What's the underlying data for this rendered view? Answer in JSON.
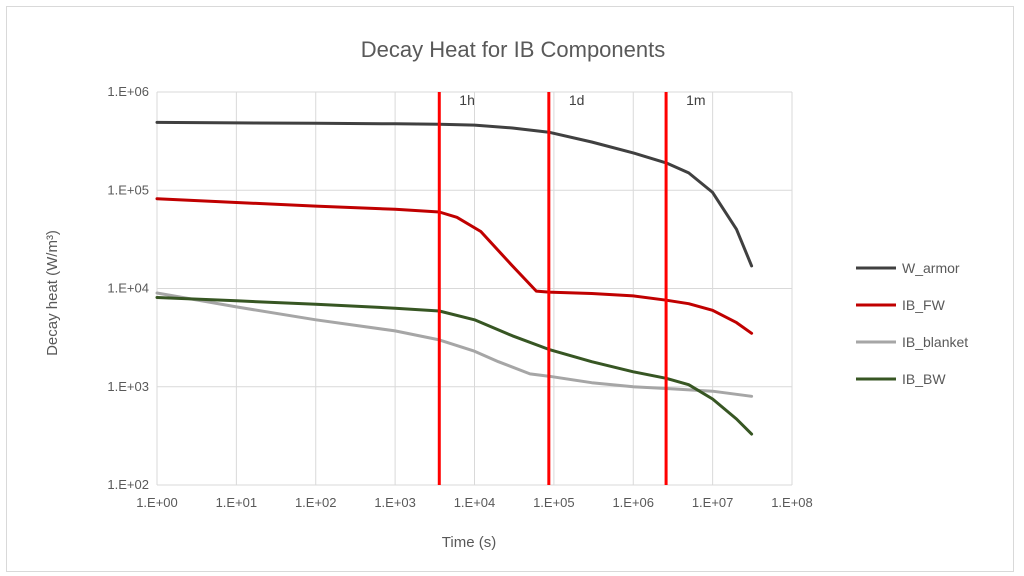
{
  "chart_data": {
    "type": "line",
    "title": "Decay Heat for IB Components",
    "xlabel": "Time (s)",
    "ylabel": "Decay heat (W/m³)",
    "xscale": "log",
    "yscale": "log",
    "xlim": [
      1,
      100000000
    ],
    "ylim": [
      100,
      1000000
    ],
    "x_tick_values": [
      1,
      10,
      100,
      1000,
      10000,
      100000,
      1000000,
      10000000,
      100000000
    ],
    "x_tick_labels": [
      "1.E+00",
      "1.E+01",
      "1.E+02",
      "1.E+03",
      "1.E+04",
      "1.E+05",
      "1.E+06",
      "1.E+07",
      "1.E+08"
    ],
    "y_tick_values": [
      100,
      1000,
      10000,
      100000,
      1000000
    ],
    "y_tick_labels": [
      "1.E+02",
      "1.E+03",
      "1.E+04",
      "1.E+05",
      "1.E+06"
    ],
    "grid": true,
    "legend_position": "right",
    "series": [
      {
        "name": "W_armor",
        "color": "#404040",
        "x": [
          1,
          10,
          100,
          1000,
          3600,
          10000,
          30000,
          86400,
          300000,
          1000000,
          2600000,
          5000000,
          10000000,
          20000000,
          31000000
        ],
        "y": [
          490000,
          485000,
          480000,
          475000,
          470000,
          460000,
          430000,
          390000,
          310000,
          240000,
          190000,
          150000,
          95000,
          40000,
          17000
        ]
      },
      {
        "name": "IB_FW",
        "color": "#c00000",
        "x": [
          1,
          10,
          100,
          1000,
          3600,
          6000,
          12000,
          30000,
          60000,
          86400,
          300000,
          1000000,
          2600000,
          5000000,
          10000000,
          20000000,
          31000000
        ],
        "y": [
          82000,
          75000,
          69000,
          64000,
          60000,
          53000,
          38000,
          17000,
          9400,
          9200,
          8900,
          8400,
          7600,
          7000,
          6000,
          4500,
          3500
        ]
      },
      {
        "name": "IB_blanket",
        "color": "#a6a6a6",
        "x": [
          1,
          10,
          100,
          1000,
          3600,
          10000,
          20000,
          50000,
          86400,
          300000,
          1000000,
          2600000,
          10000000,
          31000000
        ],
        "y": [
          9000,
          6500,
          4800,
          3700,
          3000,
          2300,
          1800,
          1350,
          1280,
          1100,
          1000,
          960,
          900,
          800
        ]
      },
      {
        "name": "IB_BW",
        "color": "#375623",
        "x": [
          1,
          10,
          100,
          1000,
          3600,
          10000,
          30000,
          86400,
          300000,
          1000000,
          2600000,
          5000000,
          10000000,
          20000000,
          31000000
        ],
        "y": [
          8100,
          7500,
          6900,
          6300,
          5900,
          4800,
          3300,
          2400,
          1800,
          1420,
          1220,
          1050,
          750,
          470,
          330
        ]
      }
    ],
    "vertical_lines": [
      {
        "x": 3600,
        "label": "1h",
        "color": "#ff0000"
      },
      {
        "x": 86400,
        "label": "1d",
        "color": "#ff0000"
      },
      {
        "x": 2592000,
        "label": "1m",
        "color": "#ff0000"
      }
    ]
  }
}
